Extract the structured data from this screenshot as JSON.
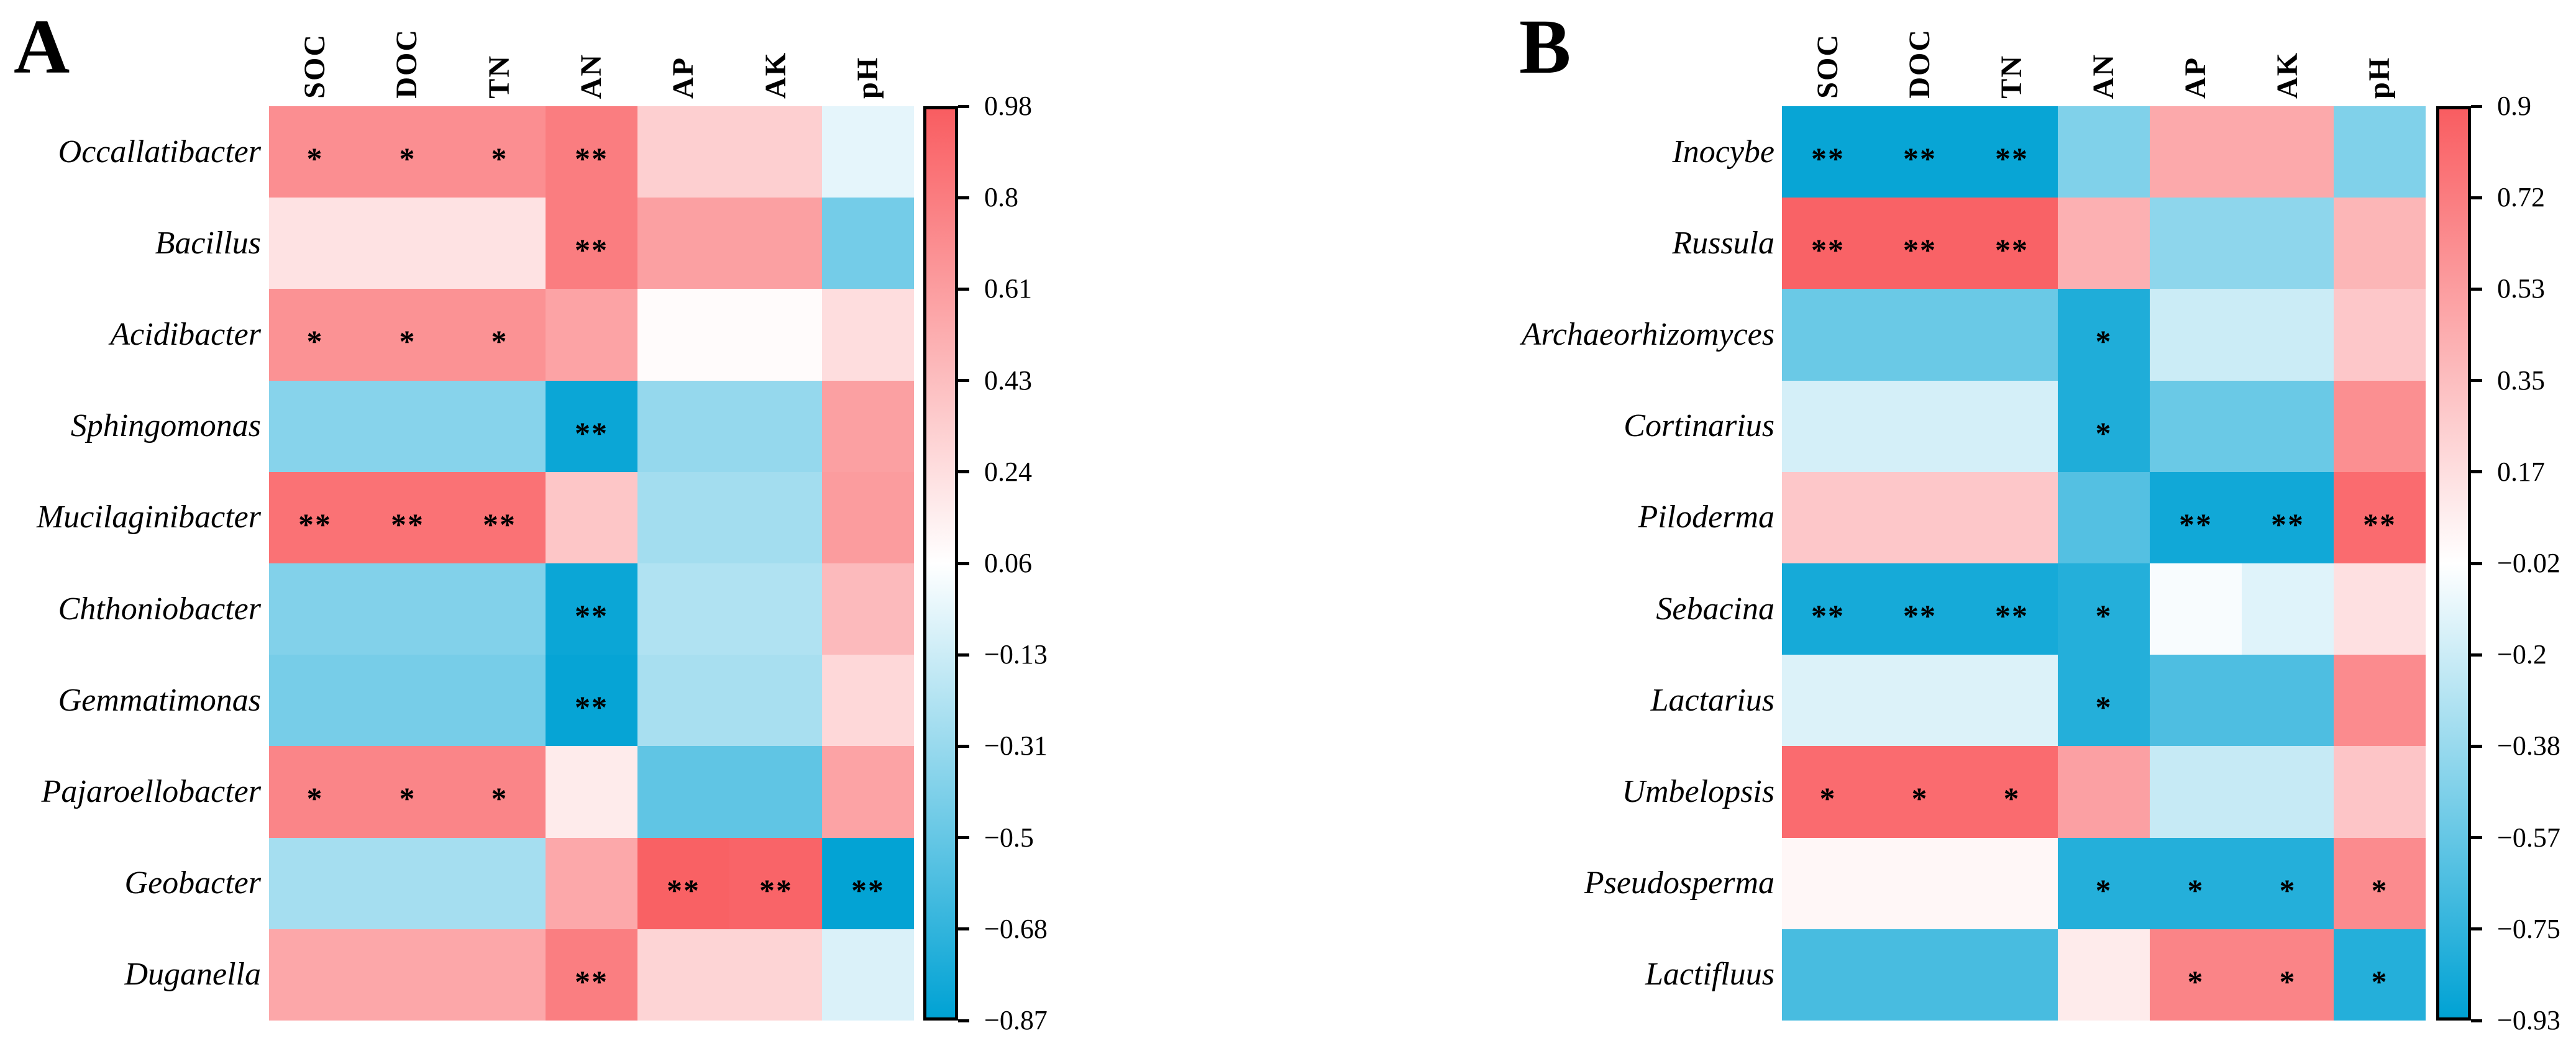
{
  "figure": {
    "background": "#ffffff",
    "description_colors": {
      "positive_max": "#F95D61",
      "midpoint": "#FFFFFF",
      "negative_max": "#00A2D4",
      "text": "#000000",
      "colorbar_border": "#000000"
    }
  },
  "chart_data": [
    {
      "type": "heatmap",
      "panel_label": "A",
      "columns": [
        "SOC",
        "DOC",
        "TN",
        "AN",
        "AP",
        "AK",
        "pH"
      ],
      "rows": [
        "Occallatibacter",
        "Bacillus",
        "Acidibacter",
        "Sphingomonas",
        "Mucilaginibacter",
        "Chthoniobacter",
        "Gemmatimonas",
        "Pajaroellobacter",
        "Geobacter",
        "Duganella"
      ],
      "values": [
        [
          0.7,
          0.7,
          0.7,
          0.8,
          0.33,
          0.33,
          -0.04
        ],
        [
          0.22,
          0.22,
          0.22,
          0.8,
          0.6,
          0.6,
          -0.45
        ],
        [
          0.68,
          0.68,
          0.68,
          0.58,
          0.08,
          0.08,
          0.25
        ],
        [
          -0.38,
          -0.38,
          -0.38,
          -0.83,
          -0.33,
          -0.33,
          0.6
        ],
        [
          0.86,
          0.86,
          0.86,
          0.38,
          -0.28,
          -0.28,
          0.62
        ],
        [
          -0.4,
          -0.4,
          -0.4,
          -0.83,
          -0.23,
          -0.23,
          0.45
        ],
        [
          -0.44,
          -0.44,
          -0.44,
          -0.85,
          -0.26,
          -0.26,
          0.28
        ],
        [
          0.75,
          0.75,
          0.75,
          0.17,
          -0.52,
          -0.52,
          0.58
        ],
        [
          -0.27,
          -0.27,
          -0.27,
          0.55,
          0.96,
          0.94,
          -0.86
        ],
        [
          0.56,
          0.56,
          0.56,
          0.79,
          0.3,
          0.3,
          -0.08
        ]
      ],
      "significance": [
        [
          "*",
          "*",
          "*",
          "**",
          "",
          "",
          ""
        ],
        [
          "",
          "",
          "",
          "**",
          "",
          "",
          ""
        ],
        [
          "*",
          "*",
          "*",
          "",
          "",
          "",
          ""
        ],
        [
          "",
          "",
          "",
          "**",
          "",
          "",
          ""
        ],
        [
          "**",
          "**",
          "**",
          "",
          "",
          "",
          ""
        ],
        [
          "",
          "",
          "",
          "**",
          "",
          "",
          ""
        ],
        [
          "",
          "",
          "",
          "**",
          "",
          "",
          ""
        ],
        [
          "*",
          "*",
          "*",
          "",
          "",
          "",
          ""
        ],
        [
          "",
          "",
          "",
          "",
          "**",
          "**",
          "**"
        ],
        [
          "",
          "",
          "",
          "**",
          "",
          "",
          ""
        ]
      ],
      "colorbar": {
        "vmax": 0.98,
        "vmin": -0.87,
        "tick_labels": [
          "0.98",
          "0.8",
          "0.61",
          "0.43",
          "0.24",
          "0.06",
          "−0.13",
          "−0.31",
          "−0.5",
          "−0.68",
          "−0.87"
        ]
      },
      "colormap": {
        "positive": "#F95D61",
        "middle": "#FFFFFF",
        "negative": "#00A2D4"
      },
      "legend_position": "right",
      "grid": false
    },
    {
      "type": "heatmap",
      "panel_label": "B",
      "columns": [
        "SOC",
        "DOC",
        "TN",
        "AN",
        "AP",
        "AK",
        "pH"
      ],
      "rows": [
        "Inocybe",
        "Russula",
        "Archaeorhizomyces",
        "Cortinarius",
        "Piloderma",
        "Sebacina",
        "Lactarius",
        "Umbelopsis",
        "Pseudosperma",
        "Lactifluus"
      ],
      "values": [
        [
          -0.9,
          -0.9,
          -0.9,
          -0.47,
          0.47,
          0.47,
          -0.47
        ],
        [
          0.87,
          0.87,
          0.87,
          0.43,
          -0.42,
          -0.42,
          0.4
        ],
        [
          -0.55,
          -0.55,
          -0.55,
          -0.82,
          -0.2,
          -0.2,
          0.3
        ],
        [
          -0.17,
          -0.17,
          -0.17,
          -0.82,
          -0.55,
          -0.55,
          0.62
        ],
        [
          0.3,
          0.3,
          0.3,
          -0.63,
          -0.87,
          -0.87,
          0.82
        ],
        [
          -0.85,
          -0.85,
          -0.85,
          -0.8,
          -0.04,
          -0.13,
          0.16
        ],
        [
          -0.14,
          -0.14,
          -0.14,
          -0.8,
          -0.65,
          -0.65,
          0.64
        ],
        [
          0.82,
          0.82,
          0.82,
          0.52,
          -0.22,
          -0.22,
          0.31
        ],
        [
          0.03,
          0.03,
          0.03,
          -0.8,
          -0.8,
          -0.8,
          0.64
        ],
        [
          -0.67,
          -0.67,
          -0.67,
          0.1,
          0.68,
          0.68,
          -0.8
        ]
      ],
      "significance": [
        [
          "**",
          "**",
          "**",
          "",
          "",
          "",
          ""
        ],
        [
          "**",
          "**",
          "**",
          "",
          "",
          "",
          ""
        ],
        [
          "",
          "",
          "",
          "*",
          "",
          "",
          ""
        ],
        [
          "",
          "",
          "",
          "*",
          "",
          "",
          ""
        ],
        [
          "",
          "",
          "",
          "",
          "**",
          "**",
          "**"
        ],
        [
          "**",
          "**",
          "**",
          "*",
          "",
          "",
          ""
        ],
        [
          "",
          "",
          "",
          "*",
          "",
          "",
          ""
        ],
        [
          "*",
          "*",
          "*",
          "",
          "",
          "",
          ""
        ],
        [
          "",
          "",
          "",
          "*",
          "*",
          "*",
          "*"
        ],
        [
          "",
          "",
          "",
          "",
          "*",
          "*",
          "*"
        ]
      ],
      "colorbar": {
        "vmax": 0.9,
        "vmin": -0.93,
        "tick_labels": [
          "0.9",
          "0.72",
          "0.53",
          "0.35",
          "0.17",
          "−0.02",
          "−0.2",
          "−0.38",
          "−0.57",
          "−0.75",
          "−0.93"
        ]
      },
      "colormap": {
        "positive": "#F95D61",
        "middle": "#FFFFFF",
        "negative": "#00A2D4"
      },
      "legend_position": "right",
      "grid": false
    }
  ]
}
